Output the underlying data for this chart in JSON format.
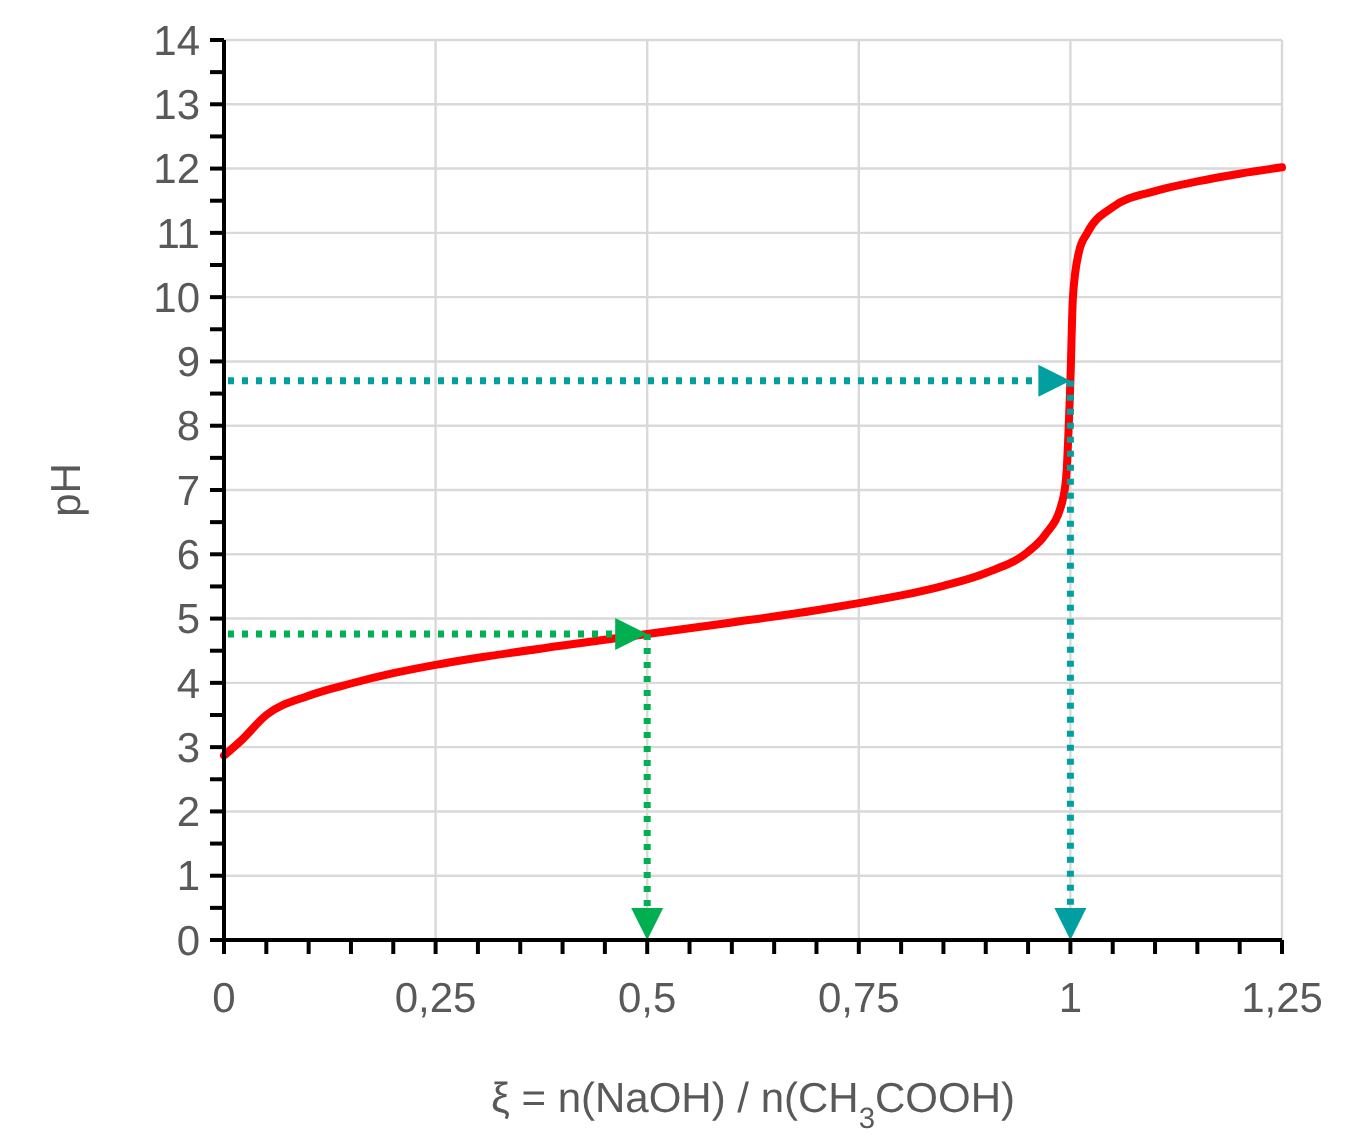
{
  "chart_data": {
    "type": "line",
    "xlabel": "ξ = n(NaOH) / n(CH$_{3}$COOH)",
    "ylabel": "pH",
    "xlim": [
      0,
      1.25
    ],
    "ylim": [
      0,
      14
    ],
    "xticks": [
      {
        "value": 0,
        "label": "0"
      },
      {
        "value": 0.05,
        "label": null
      },
      {
        "value": 0.1,
        "label": null
      },
      {
        "value": 0.15,
        "label": null
      },
      {
        "value": 0.2,
        "label": null
      },
      {
        "value": 0.25,
        "label": "0,25"
      },
      {
        "value": 0.3,
        "label": null
      },
      {
        "value": 0.35,
        "label": null
      },
      {
        "value": 0.4,
        "label": null
      },
      {
        "value": 0.45,
        "label": null
      },
      {
        "value": 0.5,
        "label": "0,5"
      },
      {
        "value": 0.55,
        "label": null
      },
      {
        "value": 0.6,
        "label": null
      },
      {
        "value": 0.65,
        "label": null
      },
      {
        "value": 0.7,
        "label": null
      },
      {
        "value": 0.75,
        "label": "0,75"
      },
      {
        "value": 0.8,
        "label": null
      },
      {
        "value": 0.85,
        "label": null
      },
      {
        "value": 0.9,
        "label": null
      },
      {
        "value": 0.95,
        "label": null
      },
      {
        "value": 1,
        "label": "1"
      },
      {
        "value": 1.05,
        "label": null
      },
      {
        "value": 1.1,
        "label": null
      },
      {
        "value": 1.15,
        "label": null
      },
      {
        "value": 1.2,
        "label": null
      },
      {
        "value": 1.25,
        "label": "1,25"
      }
    ],
    "yticks": [
      0,
      {
        "value": 0.5,
        "label": null
      },
      1,
      {
        "value": 1.5,
        "label": null
      },
      2,
      {
        "value": 2.5,
        "label": null
      },
      3,
      {
        "value": 3.5,
        "label": null
      },
      4,
      {
        "value": 4.5,
        "label": null
      },
      5,
      {
        "value": 5.5,
        "label": null
      },
      6,
      {
        "value": 6.5,
        "label": null
      },
      7,
      {
        "value": 7.5,
        "label": null
      },
      8,
      {
        "value": 8.5,
        "label": null
      },
      9,
      {
        "value": 9.5,
        "label": null
      },
      10,
      {
        "value": 10.5,
        "label": null
      },
      11,
      {
        "value": 11.5,
        "label": null
      },
      12,
      {
        "value": 12.5,
        "label": null
      },
      13,
      {
        "value": 13.5,
        "label": null
      },
      14
    ],
    "grid": true,
    "series": [
      {
        "color": "#ff0000",
        "line_style": "solid",
        "x": [
          0,
          0.02,
          0.05,
          0.1,
          0.15,
          0.2,
          0.25,
          0.3,
          0.4,
          0.5,
          0.6,
          0.7,
          0.75,
          0.8,
          0.85,
          0.9,
          0.95,
          0.97,
          0.99,
          0.995,
          1.0,
          1.003,
          1.01,
          1.02,
          1.05,
          1.1,
          1.15,
          1.2,
          1.25
        ],
        "values": [
          2.87,
          3.1,
          3.5,
          3.8,
          3.99,
          4.15,
          4.28,
          4.39,
          4.58,
          4.76,
          4.94,
          5.13,
          5.24,
          5.36,
          5.51,
          5.71,
          6.04,
          6.3,
          6.8,
          7.2,
          8.7,
          10.0,
          10.7,
          11.0,
          11.4,
          11.65,
          11.8,
          11.92,
          12.02
        ]
      }
    ]
  }
}
